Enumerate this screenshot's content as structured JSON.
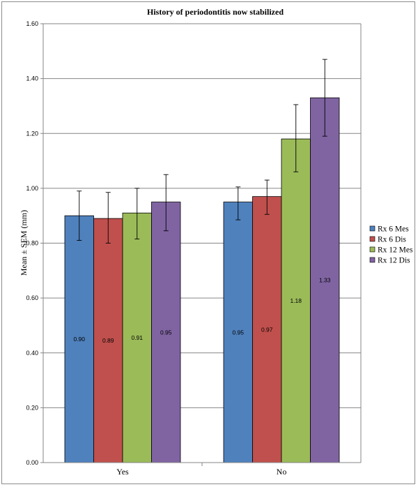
{
  "chart_data": {
    "type": "bar",
    "title": "History of periodontitis now stabilized",
    "xlabel": "",
    "ylabel": "Mean ± SEM (mm)",
    "categories": [
      "Yes",
      "No"
    ],
    "ylim": [
      0,
      1.6
    ],
    "yticks": [
      "0.00",
      "0.20",
      "0.40",
      "0.60",
      "0.80",
      "1.00",
      "1.20",
      "1.40",
      "1.60"
    ],
    "ytick_values": [
      0,
      0.2,
      0.4,
      0.6,
      0.8,
      1.0,
      1.2,
      1.4,
      1.6
    ],
    "grid": true,
    "legend_position": "right",
    "series": [
      {
        "name": "Rx 6 Mes",
        "color": "#4F81BD",
        "values": [
          0.9,
          0.95
        ],
        "labels": [
          "0.90",
          "0.95"
        ],
        "error_low": [
          0.81,
          0.885
        ],
        "error_high": [
          0.99,
          1.005
        ]
      },
      {
        "name": "Rx 6 Dis",
        "color": "#C0504D",
        "values": [
          0.89,
          0.97
        ],
        "labels": [
          "0.89",
          "0.97"
        ],
        "error_low": [
          0.8,
          0.905
        ],
        "error_high": [
          0.985,
          1.03
        ]
      },
      {
        "name": "Rx 12 Mes",
        "color": "#9BBB59",
        "values": [
          0.91,
          1.18
        ],
        "labels": [
          "0.91",
          "1.18"
        ],
        "error_low": [
          0.815,
          1.06
        ],
        "error_high": [
          1.0,
          1.305
        ]
      },
      {
        "name": "Rx 12 Dis",
        "color": "#8064A2",
        "values": [
          0.95,
          1.33
        ],
        "labels": [
          "0.95",
          "1.33"
        ],
        "error_low": [
          0.845,
          1.19
        ],
        "error_high": [
          1.05,
          1.47
        ]
      }
    ]
  }
}
